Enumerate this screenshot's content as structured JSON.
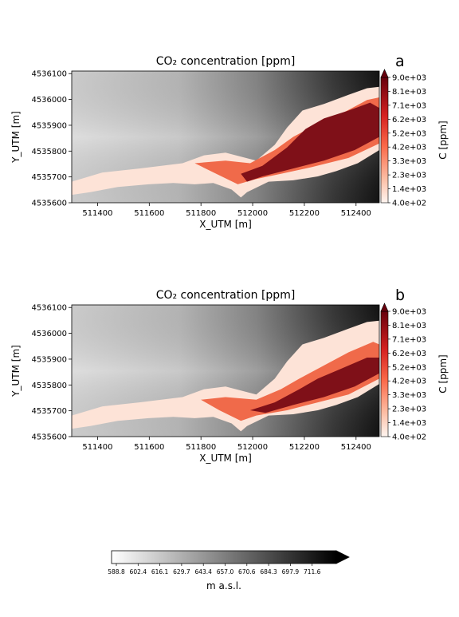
{
  "colors": {
    "plume_low": "#fde3d7",
    "plume_mid": "#f06a4a",
    "plume_high": "#7f1018",
    "terrain_low": "#ffffff",
    "terrain_high": "#000000"
  },
  "chart_data": [
    {
      "type": "heatmap",
      "panel_letter": "a",
      "title": "CO₂ concentration [ppm]",
      "xlabel": "X_UTM [m]",
      "ylabel": "Y_UTM [m]",
      "xlim": [
        511300,
        512490
      ],
      "ylim": [
        4535600,
        4536110
      ],
      "x_ticks": [
        "511400",
        "511600",
        "511800",
        "512000",
        "512200",
        "512400"
      ],
      "x_tick_values": [
        511400,
        511600,
        511800,
        512000,
        512200,
        512400
      ],
      "y_ticks": [
        "4535600",
        "4535700",
        "4535800",
        "4535900",
        "4536000",
        "4536100"
      ],
      "y_tick_values": [
        4535600,
        4535700,
        4535800,
        4535900,
        4536000,
        4536100
      ],
      "colorbar": {
        "label": "C [ppm]",
        "ticks": [
          "4.0e+02",
          "1.4e+03",
          "2.3e+03",
          "3.3e+03",
          "4.2e+03",
          "5.2e+03",
          "6.2e+03",
          "7.1e+03",
          "8.1e+03",
          "9.0e+03"
        ],
        "extend": "max",
        "colormap": "Reds"
      }
    },
    {
      "type": "heatmap",
      "panel_letter": "b",
      "title": "CO₂ concentration [ppm]",
      "xlabel": "X_UTM [m]",
      "ylabel": "Y_UTM [m]",
      "xlim": [
        511300,
        512490
      ],
      "ylim": [
        4535600,
        4536110
      ],
      "x_ticks": [
        "511400",
        "511600",
        "511800",
        "512000",
        "512200",
        "512400"
      ],
      "x_tick_values": [
        511400,
        511600,
        511800,
        512000,
        512200,
        512400
      ],
      "y_ticks": [
        "4535600",
        "4535700",
        "4535800",
        "4535900",
        "4536000",
        "4536100"
      ],
      "y_tick_values": [
        4535600,
        4535700,
        4535800,
        4535900,
        4536000,
        4536100
      ],
      "colorbar": {
        "label": "C [ppm]",
        "ticks": [
          "4.0e+02",
          "1.4e+03",
          "2.3e+03",
          "3.3e+03",
          "4.2e+03",
          "5.2e+03",
          "6.2e+03",
          "7.1e+03",
          "8.1e+03",
          "9.0e+03"
        ],
        "extend": "max",
        "colormap": "Reds"
      }
    }
  ],
  "terrain_colorbar": {
    "label": "m a.s.l.",
    "ticks": [
      "588.8",
      "602.4",
      "616.1",
      "629.7",
      "643.4",
      "657.0",
      "670.6",
      "684.3",
      "697.9",
      "711.6"
    ],
    "extend": "max",
    "colormap": "Greys"
  }
}
